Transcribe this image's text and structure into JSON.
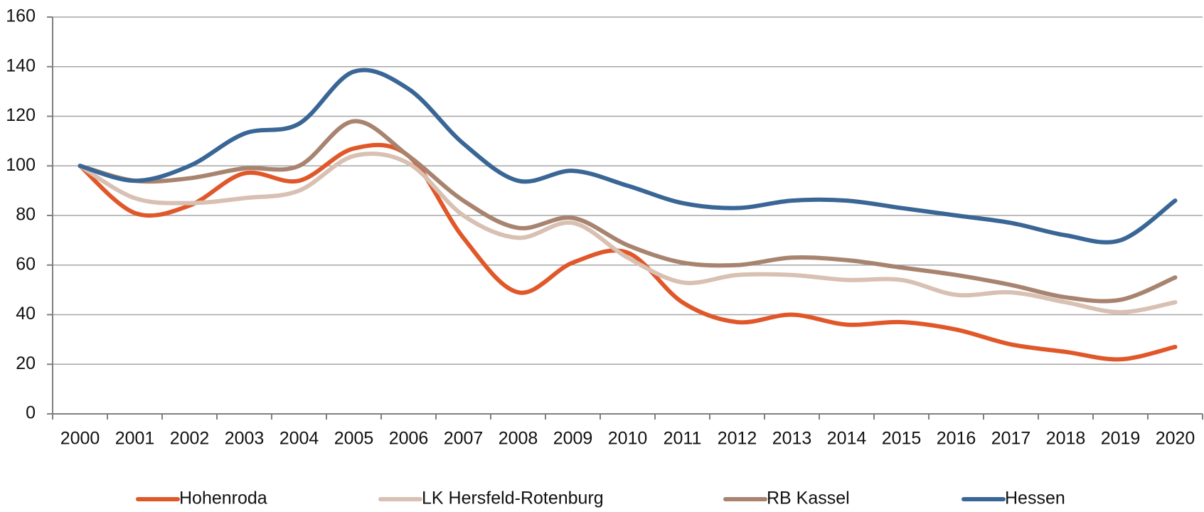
{
  "chart_data": {
    "type": "line",
    "categories": [
      "2000",
      "2001",
      "2002",
      "2003",
      "2004",
      "2005",
      "2006",
      "2007",
      "2008",
      "2009",
      "2010",
      "2011",
      "2012",
      "2013",
      "2014",
      "2015",
      "2016",
      "2017",
      "2018",
      "2019",
      "2020"
    ],
    "series": [
      {
        "name": "Hohenroda",
        "color": "#e0582a",
        "values": [
          100,
          81,
          84,
          97,
          94,
          107,
          104,
          71,
          49,
          61,
          65,
          45,
          37,
          40,
          36,
          37,
          34,
          28,
          25,
          22,
          27
        ]
      },
      {
        "name": "LK Hersfeld-Rotenburg",
        "color": "#d8c0b2",
        "values": [
          100,
          87,
          85,
          87,
          90,
          104,
          101,
          80,
          71,
          77,
          63,
          53,
          56,
          56,
          54,
          54,
          48,
          49,
          45,
          41,
          45
        ]
      },
      {
        "name": "RB Kassel",
        "color": "#a88470",
        "values": [
          100,
          94,
          95,
          99,
          100,
          118,
          104,
          86,
          75,
          79,
          68,
          61,
          60,
          63,
          62,
          59,
          56,
          52,
          47,
          46,
          55
        ]
      },
      {
        "name": "Hessen",
        "color": "#3a6696",
        "values": [
          100,
          94,
          100,
          113,
          117,
          138,
          131,
          109,
          94,
          98,
          92,
          85,
          83,
          86,
          86,
          83,
          80,
          77,
          72,
          70,
          86
        ]
      }
    ],
    "ylim": [
      0,
      160
    ],
    "yticks": [
      0,
      20,
      40,
      60,
      80,
      100,
      120,
      140,
      160
    ],
    "grid": true,
    "legend": "bottom"
  }
}
